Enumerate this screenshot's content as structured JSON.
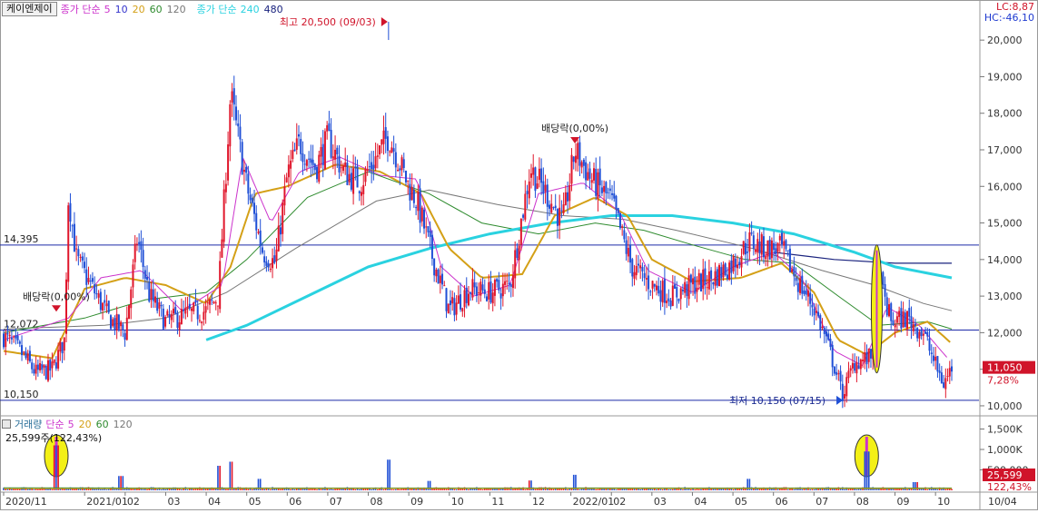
{
  "legend": {
    "stock_name": "케이엔제이",
    "price_ma_label": "종가 단순",
    "price_ma_periods": [
      "5",
      "10",
      "20",
      "60",
      "120"
    ],
    "price_ma_colors": [
      "#cc33cc",
      "#3333cc",
      "#d4a017",
      "#2e8b2e",
      "#777777"
    ],
    "long_ma_label": "종가 단순",
    "long_ma_periods": [
      "240",
      "480"
    ],
    "long_ma_colors": [
      "#2ad2e0",
      "#1a237e"
    ]
  },
  "top_right": {
    "lc": "LC:8,87",
    "hc": "HC:-46,10"
  },
  "volume_legend": {
    "label": "거래량",
    "ma_label": "단순",
    "ma_periods": [
      "5",
      "20",
      "60",
      "120"
    ],
    "ma_colors": [
      "#cc33cc",
      "#d4a017",
      "#2e8b2e",
      "#777777"
    ],
    "info": "25,599주(122,43%)"
  },
  "chart_data": {
    "type": "candlestick",
    "y_axis": {
      "min": 9800,
      "max": 20600,
      "ticks": [
        "10,000",
        "11,000",
        "12,000",
        "13,000",
        "14,000",
        "15,000",
        "16,000",
        "17,000",
        "18,000",
        "19,000",
        "20,000"
      ],
      "tick_values": [
        10000,
        11000,
        12000,
        13000,
        14000,
        15000,
        16000,
        17000,
        18000,
        19000,
        20000
      ]
    },
    "volume_axis": {
      "ticks": [
        "1,500K",
        "1,000K",
        "500,000"
      ],
      "tick_values": [
        1500000,
        1000000,
        500000
      ]
    },
    "x_labels": [
      {
        "label": "2020/11",
        "m": 0
      },
      {
        "label": "2021/01",
        "m": 2
      },
      {
        "label": "02",
        "m": 3
      },
      {
        "label": "03",
        "m": 4
      },
      {
        "label": "04",
        "m": 5
      },
      {
        "label": "05",
        "m": 6
      },
      {
        "label": "06",
        "m": 7
      },
      {
        "label": "07",
        "m": 8
      },
      {
        "label": "08",
        "m": 9
      },
      {
        "label": "09",
        "m": 10
      },
      {
        "label": "10",
        "m": 11
      },
      {
        "label": "11",
        "m": 12
      },
      {
        "label": "12",
        "m": 13
      },
      {
        "label": "2022/01",
        "m": 14
      },
      {
        "label": "02",
        "m": 15
      },
      {
        "label": "03",
        "m": 16
      },
      {
        "label": "04",
        "m": 17
      },
      {
        "label": "05",
        "m": 18
      },
      {
        "label": "06",
        "m": 19
      },
      {
        "label": "07",
        "m": 20
      },
      {
        "label": "08",
        "m": 21
      },
      {
        "label": "09",
        "m": 22
      },
      {
        "label": "10",
        "m": 23
      }
    ],
    "x_axis_end_label": "10/04",
    "horizontal_lines": [
      {
        "label": "14,395",
        "value": 14395
      },
      {
        "label": "12,072",
        "value": 12072
      },
      {
        "label": "10,150",
        "value": 10150
      }
    ],
    "price_path": [
      [
        0,
        11900
      ],
      [
        0.4,
        11500
      ],
      [
        0.8,
        10900
      ],
      [
        1.2,
        11000
      ],
      [
        1.5,
        11800
      ],
      [
        1.6,
        15800
      ],
      [
        1.8,
        14000
      ],
      [
        2.2,
        13200
      ],
      [
        2.6,
        12400
      ],
      [
        3.0,
        12000
      ],
      [
        3.3,
        14600
      ],
      [
        3.6,
        13000
      ],
      [
        4.0,
        12300
      ],
      [
        4.5,
        12500
      ],
      [
        5.0,
        12600
      ],
      [
        5.3,
        13000
      ],
      [
        5.6,
        18500
      ],
      [
        6.0,
        16000
      ],
      [
        6.4,
        14200
      ],
      [
        6.7,
        13900
      ],
      [
        7.0,
        16300
      ],
      [
        7.3,
        17200
      ],
      [
        7.7,
        16500
      ],
      [
        8.0,
        17300
      ],
      [
        8.4,
        16400
      ],
      [
        8.8,
        16100
      ],
      [
        9.2,
        16800
      ],
      [
        9.5,
        17400
      ],
      [
        10.0,
        16000
      ],
      [
        10.2,
        15600
      ],
      [
        10.6,
        14000
      ],
      [
        11.0,
        12600
      ],
      [
        11.5,
        13200
      ],
      [
        12.0,
        13100
      ],
      [
        12.5,
        13300
      ],
      [
        13.0,
        16500
      ],
      [
        13.4,
        15800
      ],
      [
        13.8,
        15000
      ],
      [
        14.1,
        17000
      ],
      [
        14.5,
        16200
      ],
      [
        15.0,
        15600
      ],
      [
        15.5,
        13800
      ],
      [
        16.0,
        13300
      ],
      [
        16.5,
        13000
      ],
      [
        17.0,
        13300
      ],
      [
        17.5,
        13500
      ],
      [
        18.0,
        13900
      ],
      [
        18.4,
        14500
      ],
      [
        18.8,
        14300
      ],
      [
        19.2,
        14300
      ],
      [
        19.6,
        13400
      ],
      [
        20.0,
        12700
      ],
      [
        20.3,
        11800
      ],
      [
        20.5,
        11100
      ],
      [
        20.7,
        10300
      ],
      [
        21.0,
        11200
      ],
      [
        21.4,
        11300
      ],
      [
        21.6,
        13500
      ],
      [
        21.9,
        12300
      ],
      [
        22.3,
        12400
      ],
      [
        22.7,
        12000
      ],
      [
        23.0,
        11100
      ],
      [
        23.2,
        10600
      ],
      [
        23.4,
        11050
      ]
    ],
    "ma5_path": [
      [
        0,
        11800
      ],
      [
        1.6,
        12400
      ],
      [
        2.4,
        13500
      ],
      [
        3.4,
        13700
      ],
      [
        4.4,
        12600
      ],
      [
        5.4,
        13300
      ],
      [
        5.9,
        16800
      ],
      [
        6.6,
        15000
      ],
      [
        7.3,
        16400
      ],
      [
        8.3,
        16800
      ],
      [
        9.3,
        16300
      ],
      [
        10.2,
        16200
      ],
      [
        10.8,
        13800
      ],
      [
        11.6,
        13000
      ],
      [
        12.5,
        13300
      ],
      [
        13.2,
        15800
      ],
      [
        14.3,
        16100
      ],
      [
        15.2,
        15300
      ],
      [
        15.9,
        13700
      ],
      [
        17.0,
        13100
      ],
      [
        18.0,
        13800
      ],
      [
        19.0,
        14200
      ],
      [
        19.7,
        13500
      ],
      [
        20.5,
        11500
      ],
      [
        21.2,
        11100
      ],
      [
        21.8,
        12700
      ],
      [
        22.6,
        12200
      ],
      [
        23.3,
        11300
      ]
    ],
    "ma20_path": [
      [
        0,
        11500
      ],
      [
        1.2,
        11300
      ],
      [
        2.0,
        13200
      ],
      [
        3.0,
        13500
      ],
      [
        4.0,
        13300
      ],
      [
        5.0,
        12800
      ],
      [
        5.6,
        13800
      ],
      [
        6.2,
        15800
      ],
      [
        7.0,
        16000
      ],
      [
        8.2,
        16600
      ],
      [
        9.3,
        16400
      ],
      [
        10.3,
        15800
      ],
      [
        11.0,
        14300
      ],
      [
        11.8,
        13500
      ],
      [
        12.8,
        13600
      ],
      [
        13.6,
        15200
      ],
      [
        14.6,
        15700
      ],
      [
        15.4,
        15200
      ],
      [
        16.0,
        14000
      ],
      [
        17.0,
        13400
      ],
      [
        18.2,
        13500
      ],
      [
        19.2,
        13900
      ],
      [
        20.0,
        13100
      ],
      [
        20.6,
        11800
      ],
      [
        21.3,
        11400
      ],
      [
        22.0,
        12000
      ],
      [
        22.8,
        12300
      ],
      [
        23.4,
        11700
      ]
    ],
    "ma60_path": [
      [
        0,
        12000
      ],
      [
        2.0,
        12400
      ],
      [
        3.5,
        12900
      ],
      [
        5.0,
        13100
      ],
      [
        6.0,
        14000
      ],
      [
        7.5,
        15700
      ],
      [
        9.0,
        16400
      ],
      [
        10.5,
        15800
      ],
      [
        11.8,
        15000
      ],
      [
        13.2,
        14700
      ],
      [
        14.6,
        15000
      ],
      [
        15.8,
        14800
      ],
      [
        17.0,
        14400
      ],
      [
        18.3,
        14000
      ],
      [
        19.5,
        13900
      ],
      [
        20.6,
        13000
      ],
      [
        21.6,
        12200
      ],
      [
        22.8,
        12300
      ],
      [
        23.4,
        12100
      ]
    ],
    "ma120_path": [
      [
        0,
        12100
      ],
      [
        2.5,
        12200
      ],
      [
        4.0,
        12400
      ],
      [
        5.5,
        13100
      ],
      [
        7.2,
        14300
      ],
      [
        9.2,
        15600
      ],
      [
        10.5,
        15900
      ],
      [
        12.2,
        15500
      ],
      [
        13.8,
        15200
      ],
      [
        15.3,
        15100
      ],
      [
        16.6,
        14800
      ],
      [
        18.5,
        14300
      ],
      [
        20.2,
        13700
      ],
      [
        21.5,
        13300
      ],
      [
        22.7,
        12800
      ],
      [
        23.4,
        12600
      ]
    ],
    "ma240_path": [
      [
        5.0,
        11800
      ],
      [
        6.0,
        12200
      ],
      [
        7.5,
        13000
      ],
      [
        9.0,
        13800
      ],
      [
        10.5,
        14300
      ],
      [
        12.0,
        14700
      ],
      [
        13.5,
        15000
      ],
      [
        15.0,
        15200
      ],
      [
        16.5,
        15200
      ],
      [
        18.0,
        15000
      ],
      [
        19.5,
        14700
      ],
      [
        21.0,
        14200
      ],
      [
        22.0,
        13800
      ],
      [
        23.4,
        13500
      ]
    ],
    "ma480_path": [
      [
        19.0,
        14200
      ],
      [
        20.5,
        14000
      ],
      [
        22.0,
        13900
      ],
      [
        23.4,
        13900
      ]
    ],
    "annotations": [
      {
        "text": "최고 20,500 (09/03)",
        "m": 9.5,
        "value": 20500,
        "kind": "high"
      },
      {
        "text": "배당락(0,00%)",
        "m": 14.1,
        "value": 17100,
        "kind": "dividend"
      },
      {
        "text": "배당락(0,00%)",
        "m": 1.3,
        "value": 12500,
        "kind": "dividend"
      },
      {
        "text": "최저 10,150 (07/15)",
        "m": 20.6,
        "value": 10150,
        "kind": "low"
      }
    ],
    "highlight_markers": [
      {
        "m": 21.55,
        "low": 10900,
        "high": 14400
      },
      {
        "m": 1.3,
        "volume_marker": true
      },
      {
        "m": 21.3,
        "volume_marker": true
      }
    ],
    "current_price": {
      "value": 11050,
      "label": "11,050",
      "change": "7,28%"
    },
    "current_volume": {
      "value": 25599,
      "label": "25,599",
      "change": "122,43%"
    },
    "volume_spikes": [
      {
        "m": 1.3,
        "v": 1100000
      },
      {
        "m": 2.9,
        "v": 350000
      },
      {
        "m": 5.3,
        "v": 600000
      },
      {
        "m": 5.6,
        "v": 700000
      },
      {
        "m": 6.3,
        "v": 280000
      },
      {
        "m": 9.5,
        "v": 750000
      },
      {
        "m": 10.5,
        "v": 230000
      },
      {
        "m": 13.0,
        "v": 240000
      },
      {
        "m": 14.1,
        "v": 380000
      },
      {
        "m": 18.4,
        "v": 280000
      },
      {
        "m": 21.3,
        "v": 950000
      },
      {
        "m": 22.5,
        "v": 200000
      }
    ]
  }
}
